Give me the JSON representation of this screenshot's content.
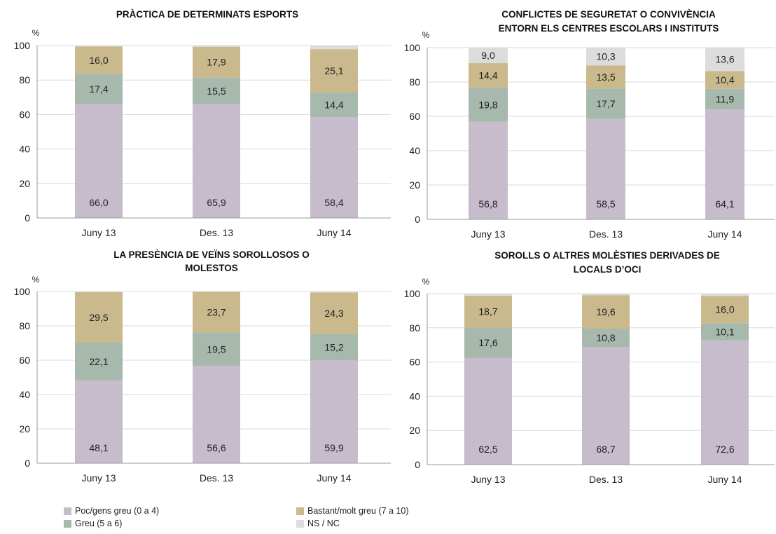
{
  "colors": {
    "poc": "#c7bccb",
    "greu": "#a7b8ad",
    "bastant": "#c9b98c",
    "nsnc": "#dcdcdc"
  },
  "legend": [
    {
      "key": "poc",
      "label": "Poc/gens greu (0 a 4)"
    },
    {
      "key": "bastant",
      "label": "Bastant/molt greu (7 a 10)"
    },
    {
      "key": "greu",
      "label": "Greu (5 a 6)"
    },
    {
      "key": "nsnc",
      "label": "NS / NC"
    }
  ],
  "chart_data": [
    {
      "type": "bar",
      "stacked": true,
      "title": [
        "PRÀCTICA DE DETERMINATS ESPORTS"
      ],
      "ylabel": "%",
      "ylim": [
        0,
        100
      ],
      "yticks": [
        0,
        20,
        40,
        60,
        80,
        100
      ],
      "categories": [
        "Juny 13",
        "Des. 13",
        "Juny 14"
      ],
      "series": [
        {
          "key": "poc",
          "name": "Poc/gens greu (0 a 4)",
          "values": [
            66.0,
            65.9,
            58.4
          ],
          "labels": [
            "66,0",
            "65,9",
            "58,4"
          ]
        },
        {
          "key": "greu",
          "name": "Greu (5 a 6)",
          "values": [
            17.4,
            15.5,
            14.4
          ],
          "labels": [
            "17,4",
            "15,5",
            "14,4"
          ]
        },
        {
          "key": "bastant",
          "name": "Bastant/molt greu (7 a 10)",
          "values": [
            16.0,
            17.9,
            25.1
          ],
          "labels": [
            "16,0",
            "17,9",
            "25,1"
          ]
        },
        {
          "key": "nsnc",
          "name": "NS / NC",
          "values": [
            0.6,
            0.7,
            2.1
          ],
          "labels": [
            "",
            "",
            ""
          ]
        }
      ]
    },
    {
      "type": "bar",
      "stacked": true,
      "title": [
        "CONFLICTES DE SEGURETAT O CONVIVÈNCIA",
        "ENTORN ELS CENTRES ESCOLARS I INSTITUTS"
      ],
      "ylabel": "%",
      "ylim": [
        0,
        100
      ],
      "yticks": [
        0,
        20,
        40,
        60,
        80,
        100
      ],
      "categories": [
        "Juny 13",
        "Des. 13",
        "Juny 14"
      ],
      "series": [
        {
          "key": "poc",
          "name": "Poc/gens greu (0 a 4)",
          "values": [
            56.8,
            58.5,
            64.1
          ],
          "labels": [
            "56,8",
            "58,5",
            "64,1"
          ]
        },
        {
          "key": "greu",
          "name": "Greu (5 a 6)",
          "values": [
            19.8,
            17.7,
            11.9
          ],
          "labels": [
            "19,8",
            "17,7",
            "11,9"
          ]
        },
        {
          "key": "bastant",
          "name": "Bastant/molt greu (7 a 10)",
          "values": [
            14.4,
            13.5,
            10.4
          ],
          "labels": [
            "14,4",
            "13,5",
            "10,4"
          ]
        },
        {
          "key": "nsnc",
          "name": "NS / NC",
          "values": [
            9.0,
            10.3,
            13.6
          ],
          "labels": [
            "9,0",
            "10,3",
            "13,6"
          ]
        }
      ]
    },
    {
      "type": "bar",
      "stacked": true,
      "title": [
        "LA PRESÈNCIA DE VEÏNS SOROLLOSOS O",
        "MOLESTOS"
      ],
      "ylabel": "%",
      "ylim": [
        0,
        100
      ],
      "yticks": [
        0,
        20,
        40,
        60,
        80,
        100
      ],
      "categories": [
        "Juny 13",
        "Des. 13",
        "Juny 14"
      ],
      "series": [
        {
          "key": "poc",
          "name": "Poc/gens greu (0 a 4)",
          "values": [
            48.1,
            56.6,
            59.9
          ],
          "labels": [
            "48,1",
            "56,6",
            "59,9"
          ]
        },
        {
          "key": "greu",
          "name": "Greu (5 a 6)",
          "values": [
            22.1,
            19.5,
            15.2
          ],
          "labels": [
            "22,1",
            "19,5",
            "15,2"
          ]
        },
        {
          "key": "bastant",
          "name": "Bastant/molt greu (7 a 10)",
          "values": [
            29.5,
            23.7,
            24.3
          ],
          "labels": [
            "29,5",
            "23,7",
            "24,3"
          ]
        },
        {
          "key": "nsnc",
          "name": "NS / NC",
          "values": [
            0.3,
            0.2,
            0.6
          ],
          "labels": [
            "",
            "",
            ""
          ]
        }
      ]
    },
    {
      "type": "bar",
      "stacked": true,
      "title": [
        "SOROLLS O ALTRES MOLÈSTIES DERIVADES DE",
        "LOCALS D’OCI"
      ],
      "ylabel": "%",
      "ylim": [
        0,
        100
      ],
      "yticks": [
        0,
        20,
        40,
        60,
        80,
        100
      ],
      "categories": [
        "Juny 13",
        "Des. 13",
        "Juny 14"
      ],
      "series": [
        {
          "key": "poc",
          "name": "Poc/gens greu (0 a 4)",
          "values": [
            62.5,
            68.7,
            72.6
          ],
          "labels": [
            "62,5",
            "68,7",
            "72,6"
          ]
        },
        {
          "key": "greu",
          "name": "Greu (5 a 6)",
          "values": [
            17.6,
            10.8,
            10.1
          ],
          "labels": [
            "17,6",
            "10,8",
            "10,1"
          ]
        },
        {
          "key": "bastant",
          "name": "Bastant/molt greu (7 a 10)",
          "values": [
            18.7,
            19.6,
            16.0
          ],
          "labels": [
            "18,7",
            "19,6",
            "16,0"
          ]
        },
        {
          "key": "nsnc",
          "name": "NS / NC",
          "values": [
            1.2,
            0.9,
            1.3
          ],
          "labels": [
            "",
            "",
            ""
          ]
        }
      ]
    }
  ]
}
